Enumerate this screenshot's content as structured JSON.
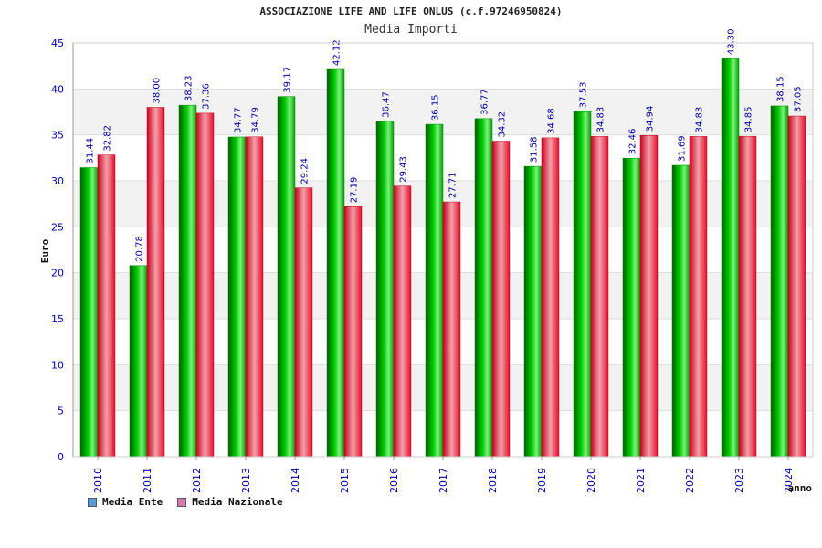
{
  "chart_data": {
    "type": "bar",
    "title": "ASSOCIAZIONE LIFE AND LIFE ONLUS (c.f.97246950824)",
    "subtitle": "Media Importi",
    "xlabel": "anno",
    "ylabel": "Euro",
    "ylim": [
      0,
      45
    ],
    "yticks": [
      0,
      5,
      10,
      15,
      20,
      25,
      30,
      35,
      40,
      45
    ],
    "grid": true,
    "legend_placement": "bottom-left",
    "categories": [
      "2010",
      "2011",
      "2012",
      "2013",
      "2014",
      "2015",
      "2016",
      "2017",
      "2018",
      "2019",
      "2020",
      "2021",
      "2022",
      "2023",
      "2024"
    ],
    "series": [
      {
        "name": "Media Ente",
        "color": "#00b400",
        "legend_color": "#5b9bd5",
        "values": [
          31.44,
          20.78,
          38.23,
          34.77,
          39.17,
          42.12,
          36.47,
          36.15,
          36.77,
          31.58,
          37.53,
          32.46,
          31.69,
          43.3,
          38.15
        ],
        "labels": [
          "31.44",
          "20.78",
          "38.23",
          "34.77",
          "39.17",
          "42.12",
          "36.47",
          "36.15",
          "36.77",
          "31.58",
          "37.53",
          "32.46",
          "31.69",
          "43.30",
          "38.15"
        ]
      },
      {
        "name": "Media Nazionale",
        "color": "#e8283c",
        "legend_color": "#d87ab0",
        "values": [
          32.82,
          38.0,
          37.36,
          34.79,
          29.24,
          27.19,
          29.43,
          27.71,
          34.32,
          34.68,
          34.83,
          34.94,
          34.83,
          34.85,
          37.05
        ],
        "labels": [
          "32.82",
          "38.00",
          "37.36",
          "34.79",
          "29.24",
          "27.19",
          "29.43",
          "27.71",
          "34.32",
          "34.68",
          "34.83",
          "34.94",
          "34.83",
          "34.85",
          "37.05"
        ]
      }
    ]
  }
}
